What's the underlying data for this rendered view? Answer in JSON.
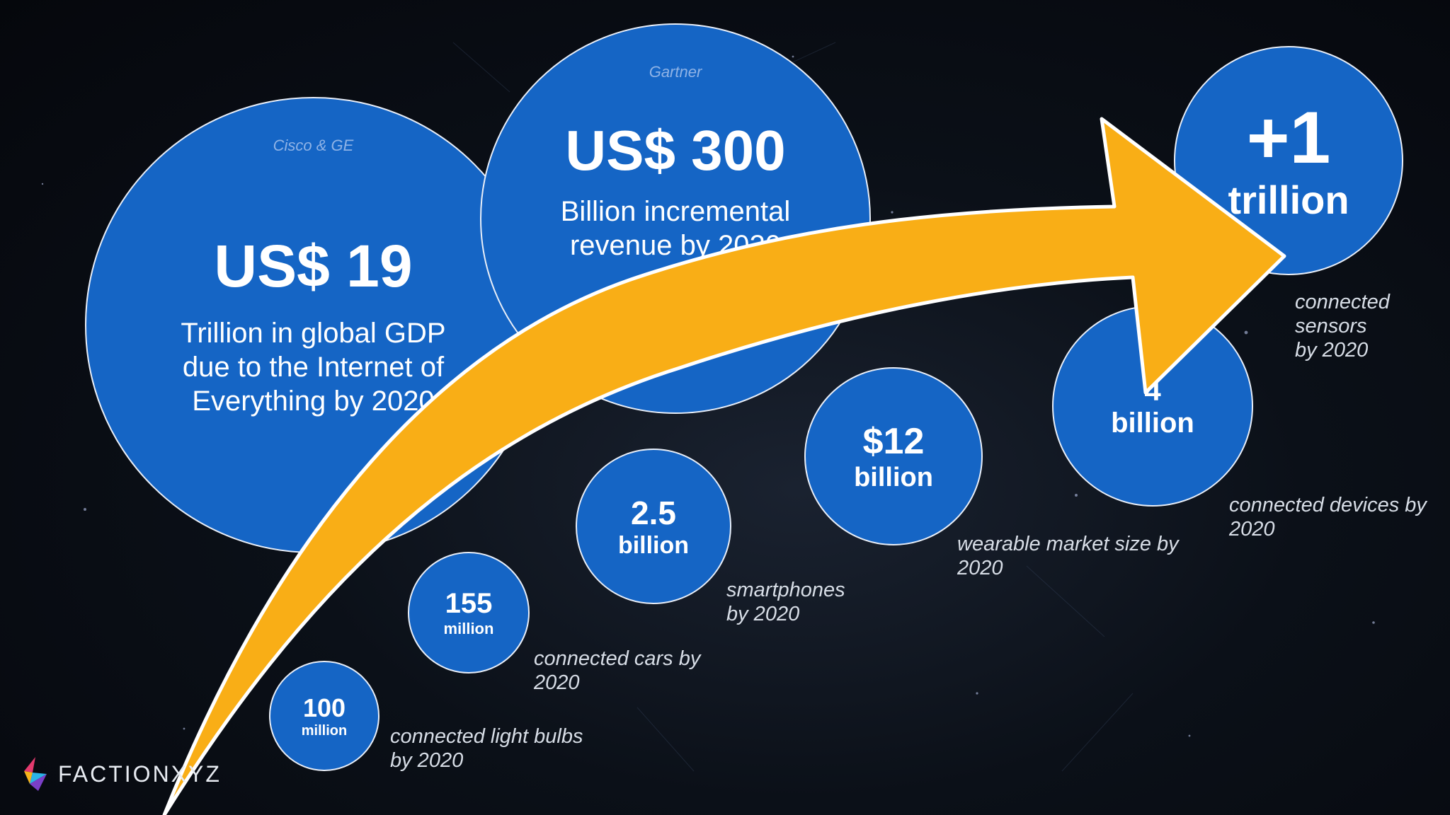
{
  "bubbles": {
    "gdp": {
      "source": "Cisco & GE",
      "value": "US$ 19",
      "description": "Trillion in global GDP\ndue to the Internet of\nEverything by 2020"
    },
    "revenue": {
      "source": "Gartner",
      "value": "US$ 300",
      "description": "Billion incremental\nrevenue by 2020"
    },
    "bulbs": {
      "value": "100",
      "unit": "million",
      "caption": "connected light bulbs\nby 2020"
    },
    "cars": {
      "value": "155",
      "unit": "million",
      "caption": "connected cars by\n2020"
    },
    "smartphones": {
      "value": "2.5",
      "unit": "billion",
      "caption": "smartphones\nby 2020"
    },
    "wearables": {
      "value": "$12",
      "unit": "billion",
      "caption": "wearable market size by\n2020"
    },
    "devices": {
      "value": "4",
      "unit": "billion",
      "caption": "connected devices by\n2020"
    },
    "sensors": {
      "value": "+1",
      "unit": "trillion",
      "caption": "connected sensors\nby 2020"
    }
  },
  "logo": {
    "text": "FACTIONXYZ"
  },
  "colors": {
    "bubble": "#1565c5",
    "arrow": "#f9ae16",
    "background": "#05070c"
  }
}
